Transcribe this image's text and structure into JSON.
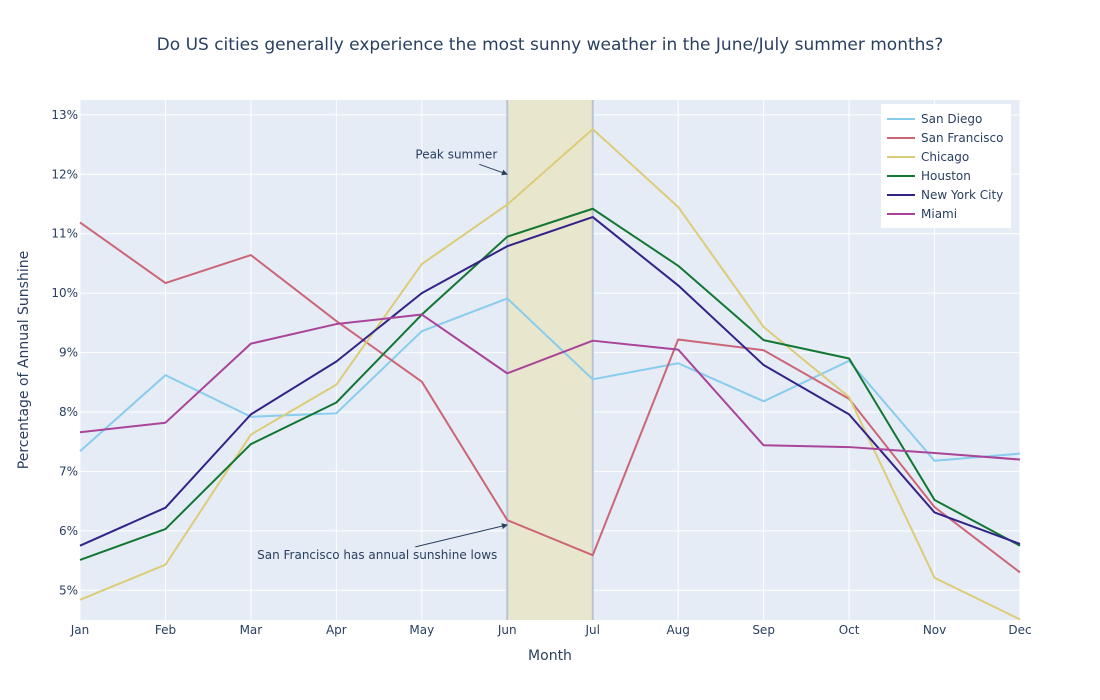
{
  "chart_data": {
    "type": "line",
    "title": "Do US cities generally experience the most sunny weather in the June/July summer months?",
    "xlabel": "Month",
    "ylabel": "Percentage of Annual Sunshine",
    "categories": [
      "Jan",
      "Feb",
      "Mar",
      "Apr",
      "May",
      "Jun",
      "Jul",
      "Aug",
      "Sep",
      "Oct",
      "Nov",
      "Dec"
    ],
    "ylim": [
      4.5,
      13.25
    ],
    "yticks": [
      5,
      6,
      7,
      8,
      9,
      10,
      11,
      12,
      13
    ],
    "ytick_labels": [
      "5%",
      "6%",
      "7%",
      "8%",
      "9%",
      "10%",
      "11%",
      "12%",
      "13%"
    ],
    "grid": true,
    "legend_position": "top-right",
    "highlight_region": {
      "from": "Jun",
      "to": "Jul",
      "color": "#e8e6cc"
    },
    "series": [
      {
        "name": "San Diego",
        "color": "#88ccee",
        "values": [
          7.34,
          8.62,
          7.92,
          7.98,
          9.36,
          9.91,
          8.55,
          8.82,
          8.18,
          8.86,
          7.18,
          7.3
        ]
      },
      {
        "name": "San Francisco",
        "color": "#cc6677",
        "values": [
          11.19,
          10.17,
          10.64,
          9.53,
          8.51,
          6.18,
          5.59,
          9.22,
          9.04,
          8.22,
          6.4,
          5.3
        ]
      },
      {
        "name": "Chicago",
        "color": "#ddcc77",
        "values": [
          4.84,
          5.43,
          7.62,
          8.46,
          10.49,
          11.49,
          12.76,
          11.45,
          9.43,
          8.25,
          5.21,
          4.51
        ]
      },
      {
        "name": "Houston",
        "color": "#117733",
        "values": [
          5.51,
          6.03,
          7.46,
          8.16,
          9.64,
          10.95,
          11.42,
          10.46,
          9.21,
          8.9,
          6.52,
          5.75
        ]
      },
      {
        "name": "New York City",
        "color": "#332288",
        "values": [
          5.75,
          6.39,
          7.96,
          8.85,
          10.0,
          10.79,
          11.28,
          10.13,
          8.79,
          7.96,
          6.31,
          5.78
        ]
      },
      {
        "name": "Miami",
        "color": "#aa4499",
        "values": [
          7.66,
          7.82,
          9.15,
          9.48,
          9.64,
          8.65,
          9.2,
          9.05,
          7.44,
          7.41,
          7.31,
          7.2
        ]
      }
    ],
    "annotations": [
      {
        "text": "Peak summer",
        "x": "Jun",
        "y": 12.0
      },
      {
        "text": "San Francisco has annual sunshine lows",
        "x": "Jun",
        "y": 6.1
      }
    ]
  }
}
